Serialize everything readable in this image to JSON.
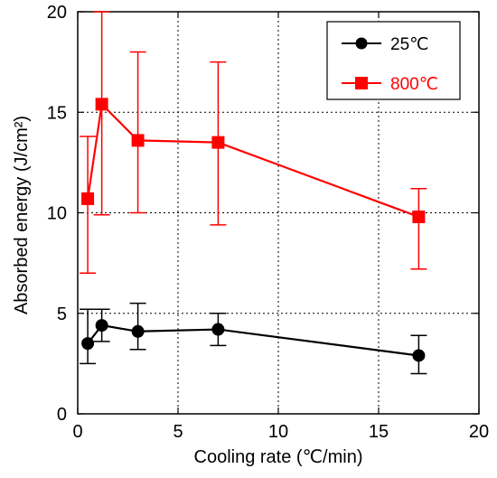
{
  "chart_data": {
    "type": "line",
    "xlabel": "Cooling rate (℃/min)",
    "ylabel": "Absorbed energy (J/cm²)",
    "xlim": [
      0,
      20
    ],
    "ylim": [
      0,
      20
    ],
    "xticks": [
      "0",
      "5",
      "10",
      "15",
      "20"
    ],
    "yticks": [
      "0",
      "5",
      "10",
      "15",
      "20"
    ],
    "grid": true,
    "legend_position": "top-right",
    "series": [
      {
        "name": "25℃",
        "color": "#000000",
        "marker": "circle",
        "x": [
          0.5,
          1.2,
          3,
          7,
          17
        ],
        "y": [
          3.5,
          4.4,
          4.1,
          4.2,
          2.9
        ],
        "err_low": [
          2.5,
          3.6,
          3.2,
          3.4,
          2.0
        ],
        "err_high": [
          5.2,
          5.2,
          5.5,
          5.0,
          3.9
        ]
      },
      {
        "name": "800℃",
        "color": "#ff0000",
        "marker": "square",
        "x": [
          0.5,
          1.2,
          3,
          7,
          17
        ],
        "y": [
          10.7,
          15.4,
          13.6,
          13.5,
          9.8
        ],
        "err_low": [
          7.0,
          9.9,
          10.0,
          9.4,
          7.2
        ],
        "err_high": [
          13.8,
          20.0,
          18.0,
          17.5,
          11.2
        ]
      }
    ]
  }
}
